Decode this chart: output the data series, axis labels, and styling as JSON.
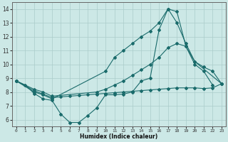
{
  "background_color": "#cce8e6",
  "grid_color": "#aaccca",
  "line_color": "#1a6b6b",
  "xlim": [
    -0.5,
    23.5
  ],
  "ylim": [
    5.5,
    14.5
  ],
  "xticks": [
    0,
    1,
    2,
    3,
    4,
    5,
    6,
    7,
    8,
    9,
    10,
    11,
    12,
    13,
    14,
    15,
    16,
    17,
    18,
    19,
    20,
    21,
    22,
    23
  ],
  "yticks": [
    6,
    7,
    8,
    9,
    10,
    11,
    12,
    13,
    14
  ],
  "xlabel": "Humidex (Indice chaleur)",
  "curves": [
    {
      "x": [
        0,
        1,
        2,
        3,
        4,
        5,
        6,
        7,
        8,
        9,
        10,
        11,
        12,
        13,
        14,
        15,
        16,
        17,
        18,
        19,
        20,
        21,
        22
      ],
      "y": [
        8.8,
        8.5,
        7.9,
        7.5,
        7.4,
        6.4,
        5.8,
        5.8,
        6.3,
        6.85,
        7.8,
        7.8,
        7.85,
        8.0,
        8.8,
        9.0,
        12.5,
        14.0,
        13.8,
        11.3,
        10.0,
        9.5,
        8.5
      ]
    },
    {
      "x": [
        0,
        2,
        3,
        4,
        10,
        11,
        12,
        13,
        14,
        15,
        16,
        17,
        18,
        19,
        20,
        23
      ],
      "y": [
        8.8,
        8.0,
        7.8,
        7.5,
        9.5,
        10.5,
        11.0,
        11.5,
        12.0,
        12.4,
        13.0,
        14.0,
        13.0,
        11.5,
        10.2,
        8.6
      ]
    },
    {
      "x": [
        0,
        2,
        3,
        4,
        9,
        10,
        11,
        12,
        13,
        14,
        15,
        16,
        17,
        18,
        19,
        20,
        21,
        22,
        23
      ],
      "y": [
        8.8,
        8.2,
        8.0,
        7.7,
        8.0,
        8.2,
        8.5,
        8.8,
        9.2,
        9.6,
        10.0,
        10.5,
        11.2,
        11.5,
        11.3,
        10.2,
        9.8,
        9.5,
        8.6
      ]
    },
    {
      "x": [
        0,
        2,
        3,
        4,
        5,
        6,
        7,
        8,
        9,
        10,
        11,
        12,
        13,
        14,
        15,
        16,
        17,
        18,
        19,
        20,
        21,
        22,
        23
      ],
      "y": [
        8.8,
        8.1,
        7.85,
        7.6,
        7.65,
        7.7,
        7.75,
        7.8,
        7.85,
        7.9,
        7.95,
        8.0,
        8.05,
        8.1,
        8.15,
        8.2,
        8.25,
        8.3,
        8.3,
        8.3,
        8.25,
        8.3,
        8.6
      ]
    }
  ]
}
